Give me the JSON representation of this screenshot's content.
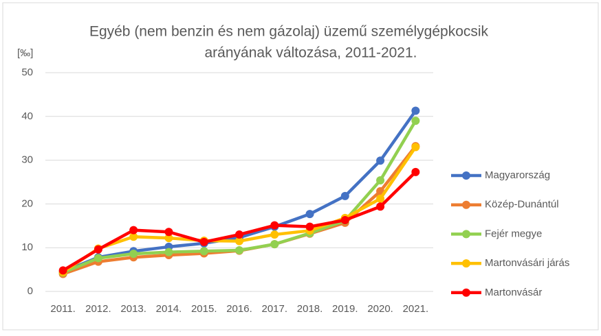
{
  "chart_data": {
    "type": "line",
    "title_lines": [
      "Egyéb (nem benzin és nem gázolaj) üzemű személygépkocsik",
      "arányának változása, 2011-2021."
    ],
    "y_label": "[‰]",
    "categories": [
      "2011.",
      "2012.",
      "2013.",
      "2014.",
      "2015.",
      "2016.",
      "2017.",
      "2018.",
      "2019.",
      "2020.",
      "2021."
    ],
    "series": [
      {
        "name": "Magyarország",
        "color": "#4472c4",
        "values": [
          4.5,
          7.8,
          9.2,
          10.2,
          11.0,
          12.3,
          14.8,
          17.7,
          21.8,
          29.9,
          41.3
        ]
      },
      {
        "name": "Közép-Dunántúl",
        "color": "#ed7d31",
        "values": [
          4.0,
          6.8,
          7.8,
          8.3,
          8.7,
          9.3,
          10.8,
          13.2,
          15.7,
          22.9,
          33.2
        ]
      },
      {
        "name": "Fejér megye",
        "color": "#92d050",
        "values": [
          4.3,
          7.6,
          8.6,
          9.0,
          9.2,
          9.4,
          10.8,
          13.3,
          16.2,
          25.4,
          39.0
        ]
      },
      {
        "name": "Martonvásári járás",
        "color": "#ffc000",
        "values": [
          4.4,
          9.8,
          12.5,
          12.2,
          11.6,
          11.5,
          13.0,
          13.9,
          16.8,
          21.2,
          33.0
        ]
      },
      {
        "name": "Martonvásár",
        "color": "#ff0000",
        "values": [
          4.8,
          9.6,
          14.0,
          13.6,
          11.3,
          13.0,
          15.1,
          14.8,
          16.3,
          19.4,
          27.3
        ]
      }
    ],
    "ylim": [
      0,
      50
    ],
    "yticks": [
      0,
      10,
      20,
      30,
      40,
      50
    ],
    "grid": true,
    "legend": "right"
  }
}
